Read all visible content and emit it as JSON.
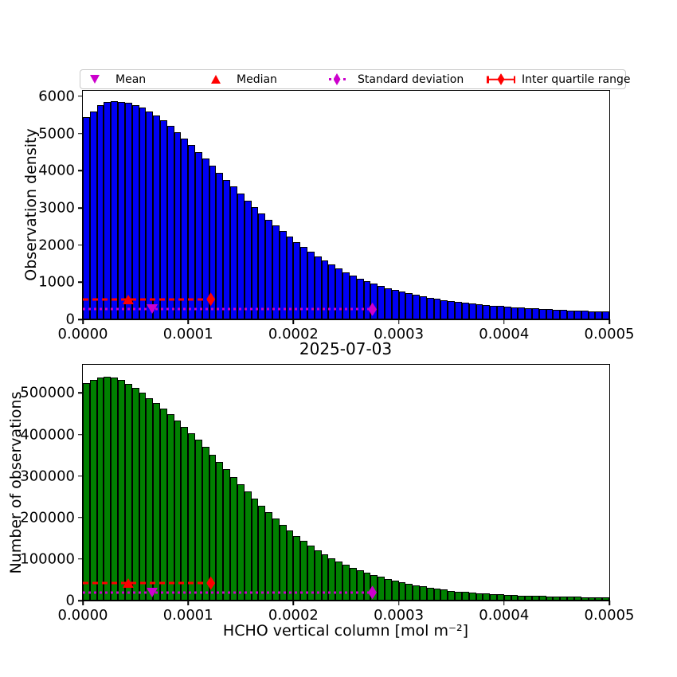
{
  "figure": {
    "background": "#ffffff"
  },
  "legend": {
    "items": [
      {
        "label": "Mean",
        "marker": "triangle-down",
        "color": "#cc00cc"
      },
      {
        "label": "Median",
        "marker": "triangle-up",
        "color": "#ff0000"
      },
      {
        "label": "Standard deviation",
        "marker": "diamond-dotted",
        "color": "#cc00cc"
      },
      {
        "label": "Inter quartile range",
        "marker": "diamond-errorbar",
        "color": "#ff0000"
      }
    ]
  },
  "chart_data": [
    {
      "type": "bar",
      "ylabel": "Observation density",
      "xlabel": "2025-07-03",
      "bar_color": "#0000f5",
      "bar_edge": "#000000",
      "xlim": [
        0,
        0.0005
      ],
      "ylim": [
        0,
        6150
      ],
      "bin_start": 0,
      "bin_width": 6.6667e-06,
      "xticks": [
        0,
        0.0001,
        0.0002,
        0.0003,
        0.0004,
        0.0005
      ],
      "xtick_labels": [
        "0.0000",
        "0.0001",
        "0.0002",
        "0.0003",
        "0.0004",
        "0.0005"
      ],
      "yticks": [
        0,
        1000,
        2000,
        3000,
        4000,
        5000,
        6000
      ],
      "ytick_labels": [
        "0",
        "1000",
        "2000",
        "3000",
        "4000",
        "5000",
        "6000"
      ],
      "values": [
        5450,
        5600,
        5760,
        5850,
        5880,
        5860,
        5830,
        5770,
        5690,
        5590,
        5480,
        5360,
        5200,
        5040,
        4870,
        4690,
        4510,
        4330,
        4140,
        3950,
        3760,
        3570,
        3390,
        3200,
        3020,
        2850,
        2680,
        2520,
        2370,
        2220,
        2080,
        1950,
        1820,
        1700,
        1580,
        1470,
        1370,
        1270,
        1180,
        1100,
        1030,
        960,
        900,
        840,
        790,
        740,
        700,
        660,
        620,
        585,
        555,
        525,
        500,
        475,
        450,
        430,
        410,
        390,
        375,
        360,
        345,
        330,
        318,
        306,
        295,
        284,
        274,
        264,
        255,
        246,
        238,
        230,
        222,
        215,
        208
      ],
      "markers": [
        {
          "name": "median",
          "shape": "triangle-up",
          "color": "#ff0000",
          "x": 4.3e-05,
          "y": 540
        },
        {
          "name": "mean",
          "shape": "triangle-down",
          "color": "#cc00cc",
          "x": 6.6e-05,
          "y": 270
        }
      ],
      "lines": [
        {
          "name": "inter-quartile-range",
          "style": "dashed",
          "color": "#ff0000",
          "x0": 0,
          "x1": 0.0001215,
          "y": 540,
          "end_marker": "diamond"
        },
        {
          "name": "standard-deviation",
          "style": "dotted",
          "color": "#cc00cc",
          "x0": 0,
          "x1": 0.000275,
          "y": 270,
          "end_marker": "diamond"
        }
      ]
    },
    {
      "type": "bar",
      "ylabel": "Number of observations",
      "xlabel": "HCHO vertical column [mol m⁻²]",
      "bar_color": "#008000",
      "bar_edge": "#000000",
      "xlim": [
        0,
        0.0005
      ],
      "ylim": [
        0,
        568000
      ],
      "bin_start": 0,
      "bin_width": 6.6667e-06,
      "xticks": [
        0,
        0.0001,
        0.0002,
        0.0003,
        0.0004,
        0.0005
      ],
      "xtick_labels": [
        "0.0000",
        "0.0001",
        "0.0002",
        "0.0003",
        "0.0004",
        "0.0005"
      ],
      "yticks": [
        0,
        100000,
        200000,
        300000,
        400000,
        500000
      ],
      "ytick_labels": [
        "0",
        "100000",
        "200000",
        "300000",
        "400000",
        "500000"
      ],
      "values": [
        523000,
        531000,
        537000,
        539000,
        537000,
        531000,
        522000,
        512000,
        500000,
        488000,
        476000,
        463000,
        449000,
        434000,
        419000,
        403000,
        387000,
        370000,
        352000,
        334000,
        316000,
        298000,
        280000,
        263000,
        246000,
        229000,
        213000,
        197000,
        182000,
        168000,
        155000,
        143000,
        132000,
        121000,
        111000,
        102000,
        94000,
        86000,
        79000,
        73000,
        67000,
        62000,
        57000,
        52000,
        48000,
        44000,
        40500,
        37000,
        34000,
        31000,
        28500,
        26000,
        24000,
        22000,
        20500,
        19000,
        17600,
        16400,
        15400,
        14500,
        13700,
        13000,
        12400,
        11800,
        11200,
        10700,
        10200,
        9800,
        9400,
        9000,
        8700,
        8400,
        8100,
        7900,
        7700
      ],
      "markers": [
        {
          "name": "median",
          "shape": "triangle-up",
          "color": "#ff0000",
          "x": 4.3e-05,
          "y": 42000
        },
        {
          "name": "mean",
          "shape": "triangle-down",
          "color": "#cc00cc",
          "x": 6.6e-05,
          "y": 19500
        }
      ],
      "lines": [
        {
          "name": "inter-quartile-range",
          "style": "dashed",
          "color": "#ff0000",
          "x0": 0,
          "x1": 0.0001215,
          "y": 42000,
          "end_marker": "diamond"
        },
        {
          "name": "standard-deviation",
          "style": "dotted",
          "color": "#cc00cc",
          "x0": 0,
          "x1": 0.000275,
          "y": 19500,
          "end_marker": "diamond"
        }
      ]
    }
  ]
}
